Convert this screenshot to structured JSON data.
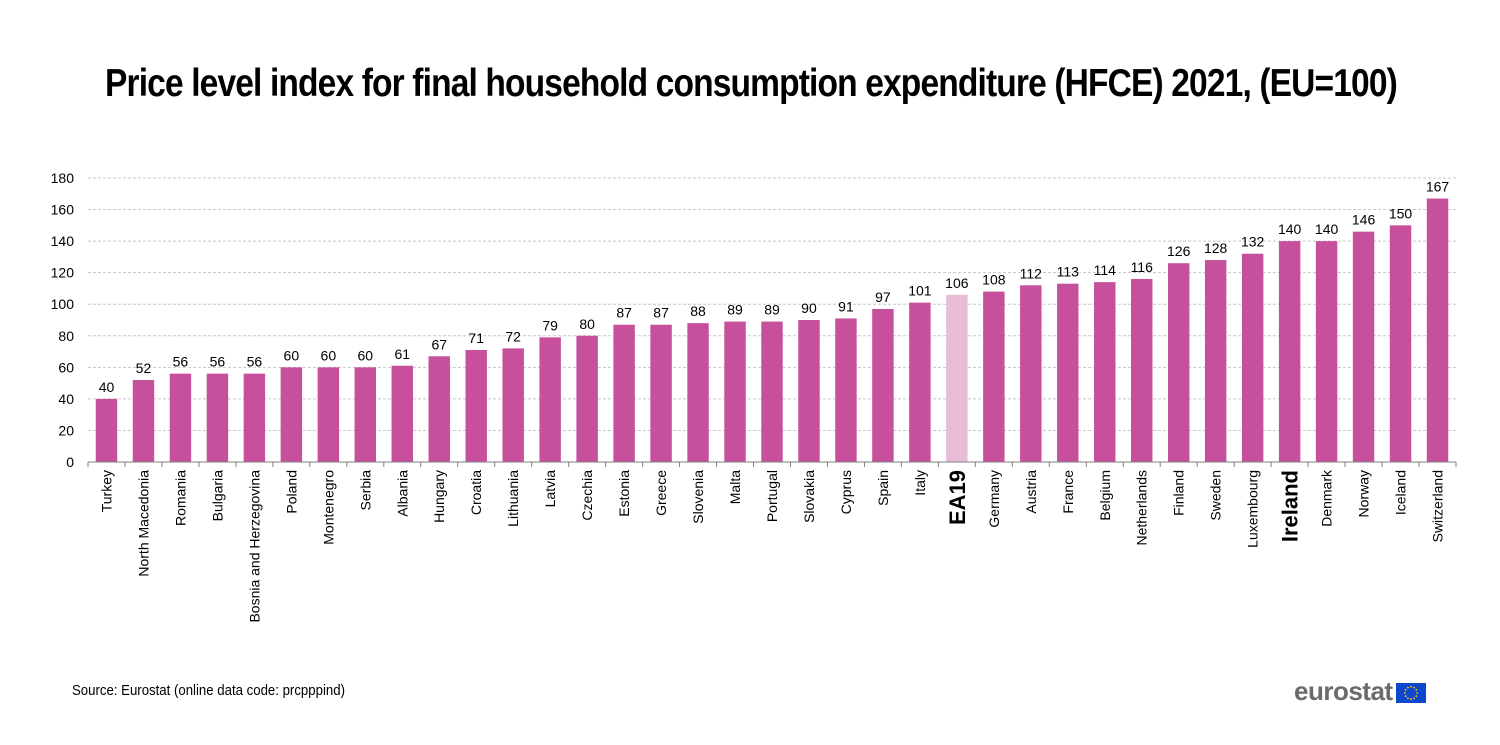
{
  "header": {
    "title": "Price level index for final household consumption expenditure (HFCE) 2021, (EU=100)"
  },
  "footer": {
    "source": "Source: Eurostat (online data code: prcpppind)",
    "brand": "eurostat",
    "brand_icon": "eu-flag-icon"
  },
  "colors": {
    "bar": "#c7509c",
    "highlight_bar": "#e9bcd8",
    "grid": "#c8c8c8",
    "axis": "#808080",
    "text": "#000000"
  },
  "chart_data": {
    "type": "bar",
    "title": "Price level index for final household consumption expenditure (HFCE) 2021, (EU=100)",
    "xlabel": "",
    "ylabel": "",
    "ylim": [
      0,
      180
    ],
    "yticks": [
      0,
      20,
      40,
      60,
      80,
      100,
      120,
      140,
      160,
      180
    ],
    "grid": true,
    "legend": "none",
    "categories": [
      "Turkey",
      "North Macedonia",
      "Romania",
      "Bulgaria",
      "Bosnia and Herzegovina",
      "Poland",
      "Montenegro",
      "Serbia",
      "Albania",
      "Hungary",
      "Croatia",
      "Lithuania",
      "Latvia",
      "Czechia",
      "Estonia",
      "Greece",
      "Slovenia",
      "Malta",
      "Portugal",
      "Slovakia",
      "Cyprus",
      "Spain",
      "Italy",
      "EA19",
      "Germany",
      "Austria",
      "France",
      "Belgium",
      "Netherlands",
      "Finland",
      "Sweden",
      "Luxembourg",
      "Ireland",
      "Denmark",
      "Norway",
      "Iceland",
      "Switzerland"
    ],
    "values": [
      40,
      52,
      56,
      56,
      56,
      60,
      60,
      60,
      61,
      67,
      71,
      72,
      79,
      80,
      87,
      87,
      88,
      89,
      89,
      90,
      91,
      97,
      101,
      106,
      108,
      112,
      113,
      114,
      116,
      126,
      128,
      132,
      140,
      140,
      146,
      150,
      167
    ],
    "highlighted": [
      "EA19"
    ],
    "bold_labels": [
      "EA19",
      "Ireland"
    ]
  }
}
